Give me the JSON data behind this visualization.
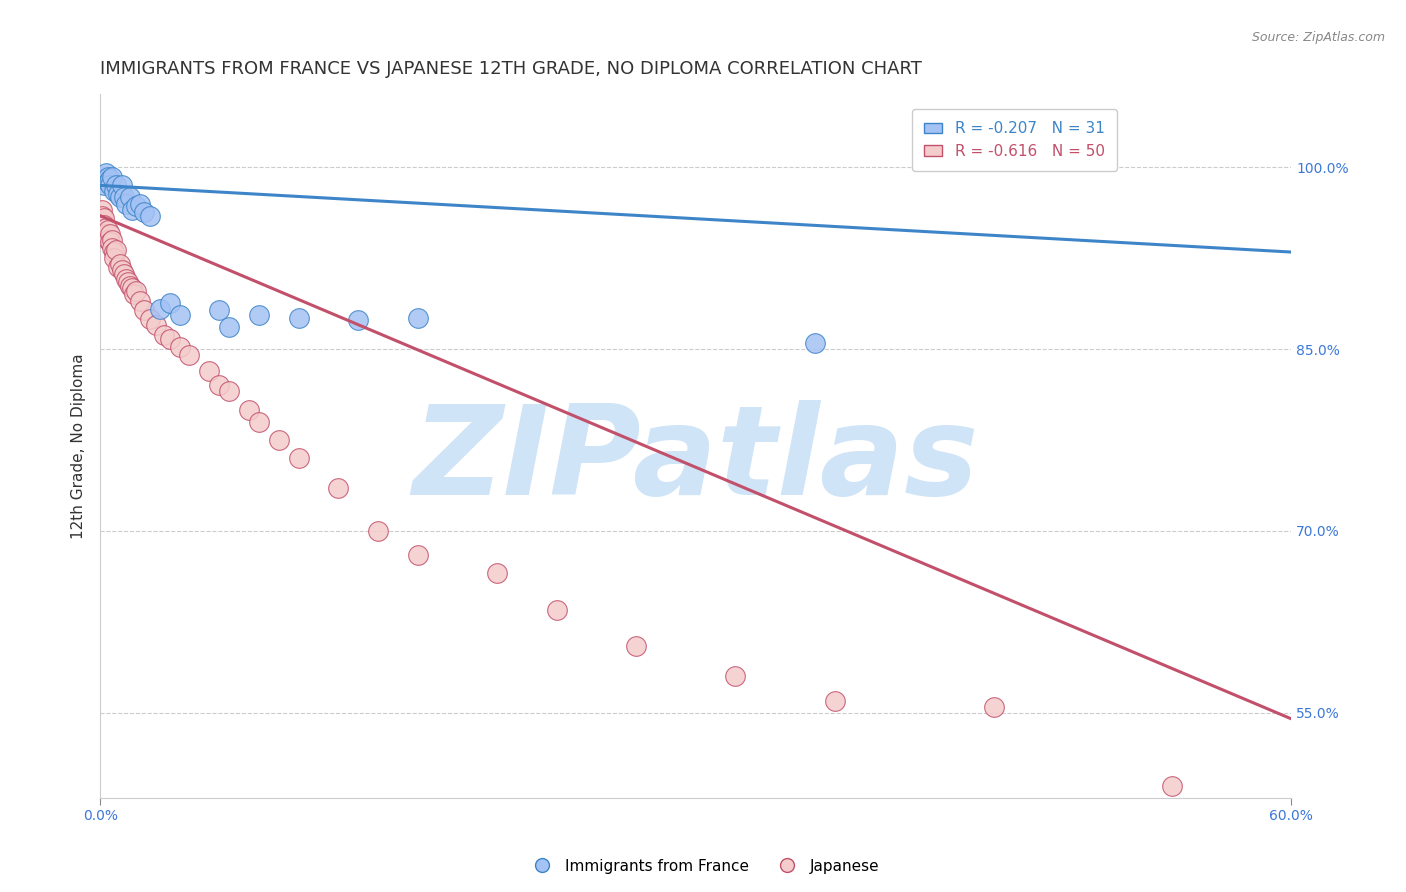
{
  "title": "IMMIGRANTS FROM FRANCE VS JAPANESE 12TH GRADE, NO DIPLOMA CORRELATION CHART",
  "source": "Source: ZipAtlas.com",
  "ylabel": "12th Grade, No Diploma",
  "xlim": [
    0.0,
    0.6
  ],
  "ylim": [
    0.48,
    1.06
  ],
  "xticks": [
    0.0,
    0.6
  ],
  "xticklabels": [
    "0.0%",
    "60.0%"
  ],
  "yticks_right": [
    1.0,
    0.85,
    0.7,
    0.55
  ],
  "ytick_labels_right": [
    "100.0%",
    "85.0%",
    "70.0%",
    "55.0%"
  ],
  "blue_R": -0.207,
  "blue_N": 31,
  "pink_R": -0.616,
  "pink_N": 50,
  "blue_color": "#a4c2f4",
  "pink_color": "#f4cccc",
  "blue_line_color": "#3d85c8",
  "pink_line_color": "#c2506b",
  "watermark": "ZIPatlas",
  "watermark_color": "#d0e4f7",
  "blue_scatter_x": [
    0.001,
    0.002,
    0.003,
    0.004,
    0.004,
    0.005,
    0.005,
    0.006,
    0.007,
    0.008,
    0.009,
    0.01,
    0.011,
    0.012,
    0.013,
    0.015,
    0.016,
    0.018,
    0.02,
    0.022,
    0.025,
    0.03,
    0.035,
    0.04,
    0.06,
    0.065,
    0.08,
    0.1,
    0.13,
    0.16,
    0.36
  ],
  "blue_scatter_y": [
    0.99,
    0.985,
    0.995,
    0.992,
    0.988,
    0.99,
    0.985,
    0.992,
    0.98,
    0.985,
    0.978,
    0.975,
    0.985,
    0.975,
    0.97,
    0.975,
    0.965,
    0.968,
    0.97,
    0.963,
    0.96,
    0.883,
    0.888,
    0.878,
    0.882,
    0.868,
    0.878,
    0.876,
    0.874,
    0.876,
    0.855
  ],
  "pink_scatter_x": [
    0.001,
    0.001,
    0.002,
    0.002,
    0.003,
    0.003,
    0.004,
    0.004,
    0.005,
    0.005,
    0.006,
    0.006,
    0.007,
    0.007,
    0.008,
    0.009,
    0.01,
    0.011,
    0.012,
    0.013,
    0.014,
    0.015,
    0.016,
    0.017,
    0.018,
    0.02,
    0.022,
    0.025,
    0.028,
    0.032,
    0.035,
    0.04,
    0.045,
    0.055,
    0.06,
    0.065,
    0.075,
    0.08,
    0.09,
    0.1,
    0.12,
    0.14,
    0.16,
    0.2,
    0.23,
    0.27,
    0.32,
    0.37,
    0.45,
    0.54
  ],
  "pink_scatter_y": [
    0.965,
    0.96,
    0.958,
    0.952,
    0.95,
    0.945,
    0.948,
    0.94,
    0.945,
    0.938,
    0.94,
    0.933,
    0.93,
    0.925,
    0.932,
    0.918,
    0.92,
    0.915,
    0.912,
    0.908,
    0.905,
    0.902,
    0.9,
    0.895,
    0.898,
    0.89,
    0.882,
    0.875,
    0.87,
    0.862,
    0.858,
    0.852,
    0.845,
    0.832,
    0.82,
    0.815,
    0.8,
    0.79,
    0.775,
    0.76,
    0.735,
    0.7,
    0.68,
    0.665,
    0.635,
    0.605,
    0.58,
    0.56,
    0.555,
    0.49
  ],
  "blue_line_x": [
    0.0,
    0.6
  ],
  "blue_line_y": [
    0.985,
    0.93
  ],
  "pink_line_x": [
    0.0,
    0.6
  ],
  "pink_line_y": [
    0.96,
    0.545
  ],
  "grid_color": "#cccccc",
  "bg_color": "#ffffff",
  "title_fontsize": 13,
  "axis_label_fontsize": 11,
  "tick_fontsize": 10,
  "legend_fontsize": 11
}
